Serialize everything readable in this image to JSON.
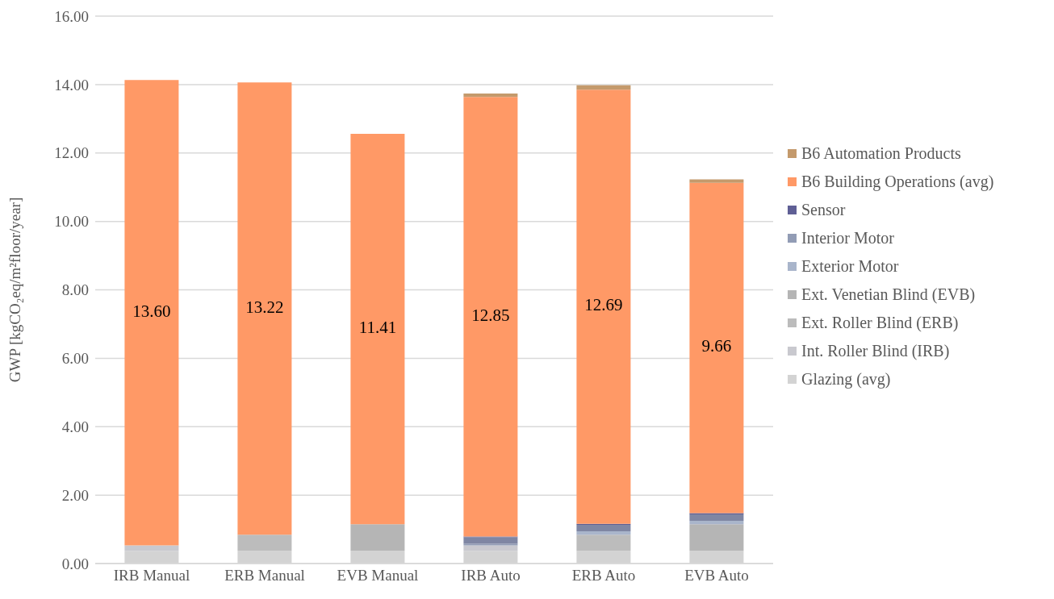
{
  "chart_data": {
    "type": "bar",
    "stacked": true,
    "ylabel": "GWP [kgCO₂eq/m²floor/year]",
    "categories": [
      "IRB Manual",
      "ERB Manual",
      "EVB Manual",
      "IRB Auto",
      "ERB Auto",
      "EVB Auto"
    ],
    "ylim": [
      0,
      16
    ],
    "yticks": [
      {
        "value": 0,
        "label": "0.00"
      },
      {
        "value": 2,
        "label": "2.00"
      },
      {
        "value": 4,
        "label": "4.00"
      },
      {
        "value": 6,
        "label": "6.00"
      },
      {
        "value": 8,
        "label": "8.00"
      },
      {
        "value": 10,
        "label": "10.00"
      },
      {
        "value": 12,
        "label": "12.00"
      },
      {
        "value": 14,
        "label": "14.00"
      },
      {
        "value": 16,
        "label": "16.00"
      }
    ],
    "grid": "y",
    "legend": "right",
    "series": [
      {
        "name": "Glazing (avg)",
        "color": "#d3d3d3",
        "values": [
          0.37,
          0.37,
          0.37,
          0.37,
          0.37,
          0.37
        ]
      },
      {
        "name": "Int. Roller Blind (IRB)",
        "color": "#c9c9cf",
        "values": [
          0.16,
          null,
          null,
          0.16,
          null,
          null
        ]
      },
      {
        "name": "Ext. Roller Blind (ERB)",
        "color": "#bcbcbc",
        "values": [
          null,
          0.47,
          null,
          null,
          0.47,
          null
        ]
      },
      {
        "name": "Ext. Venetian Blind (EVB)",
        "color": "#b5b5b5",
        "values": [
          null,
          null,
          0.78,
          null,
          null,
          0.78
        ]
      },
      {
        "name": "Exterior Motor",
        "color": "#a9b5cb",
        "values": [
          null,
          null,
          null,
          null,
          0.1,
          0.1
        ]
      },
      {
        "name": "Interior Motor",
        "color": "#929cb5",
        "values": [
          null,
          null,
          null,
          0.05,
          null,
          null
        ]
      },
      {
        "color": "#7f86a3",
        "values": [
          null,
          null,
          null,
          0.19,
          0.19,
          0.19
        ]
      },
      {
        "name": "Sensor",
        "color": "#5f5f95",
        "values": [
          null,
          null,
          null,
          0.02,
          0.03,
          0.03
        ]
      },
      {
        "name": "B6 Building Operations (avg)",
        "color": "#ff9966",
        "values": [
          13.6,
          13.22,
          11.41,
          12.85,
          12.69,
          9.66
        ],
        "value_labels": [
          "13.60",
          "13.22",
          "11.41",
          "12.85",
          "12.69",
          "9.66"
        ]
      },
      {
        "name": "B6 Automation Products",
        "color": "#c49a6c",
        "values": [
          null,
          null,
          null,
          0.1,
          0.13,
          0.1
        ]
      }
    ]
  }
}
